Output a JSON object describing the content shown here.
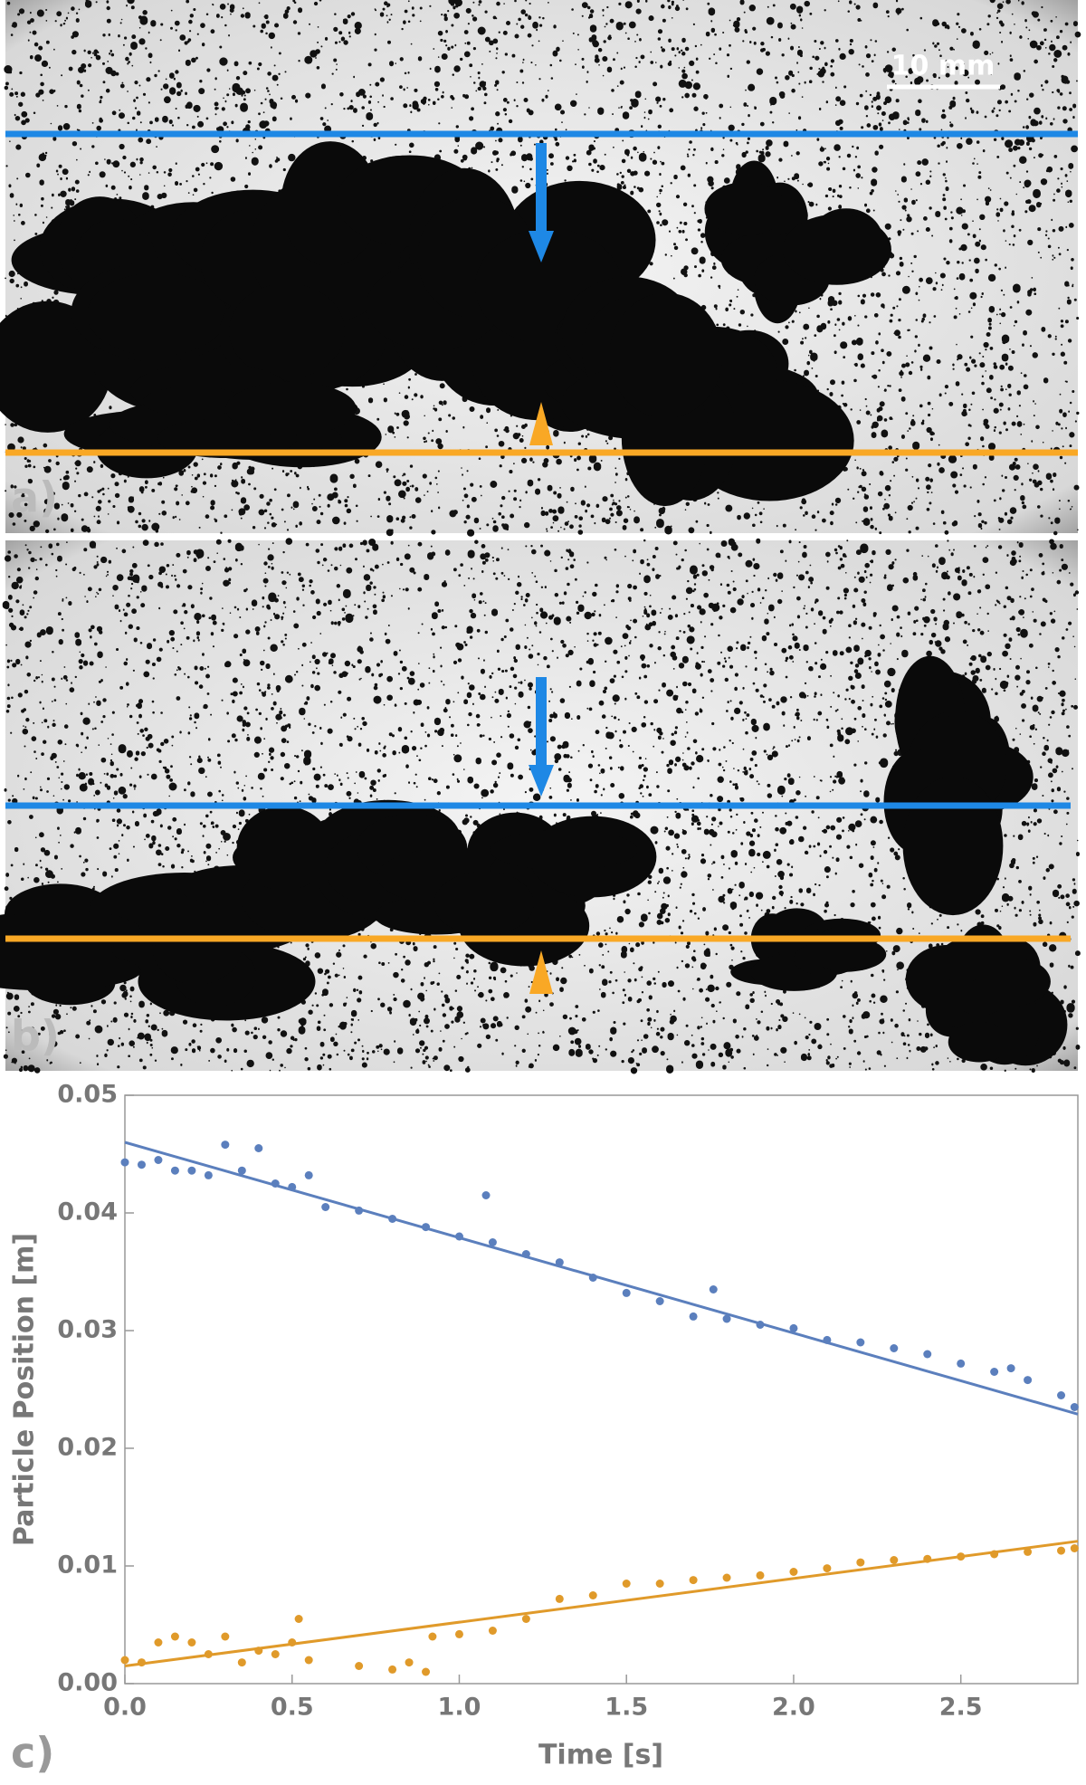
{
  "panels": [
    {
      "label": "a)",
      "scale_bar": "10 mm"
    },
    {
      "label": "b)"
    }
  ],
  "chart_data": {
    "type": "scatter",
    "panel_label": "c)",
    "xlabel": "Time [s]",
    "ylabel": "Particle Position [m]",
    "xlim": [
      0,
      2.85
    ],
    "ylim": [
      0,
      0.05
    ],
    "xticks": [
      {
        "value": 0,
        "label": "0.0"
      },
      0.5,
      {
        "value": 1,
        "label": "1.0"
      },
      1.5,
      {
        "value": 2,
        "label": "2.0"
      },
      2.5
    ],
    "yticks": [
      {
        "value": 0,
        "label": "0.00"
      },
      0.01,
      0.02,
      0.03,
      0.04,
      0.05
    ],
    "series": [
      {
        "color": "#5b7fbd",
        "mode": "markers",
        "x": [
          0,
          0.05,
          0.1,
          0.15,
          0.2,
          0.25,
          0.3,
          0.35,
          0.4,
          0.45,
          0.5,
          0.55,
          0.6,
          0.7,
          0.8,
          0.9,
          1.0,
          1.08,
          1.1,
          1.2,
          1.3,
          1.4,
          1.5,
          1.6,
          1.7,
          1.76,
          1.8,
          1.9,
          2.0,
          2.1,
          2.2,
          2.3,
          2.4,
          2.5,
          2.6,
          2.65,
          2.7,
          2.8,
          2.84
        ],
        "values": [
          0.0443,
          0.0441,
          0.0445,
          0.0436,
          0.0436,
          0.0432,
          0.0458,
          0.0436,
          0.0455,
          0.0425,
          0.0422,
          0.0432,
          0.0405,
          0.0402,
          0.0395,
          0.0388,
          0.038,
          0.0415,
          0.0375,
          0.0365,
          0.0358,
          0.0345,
          0.0332,
          0.0325,
          0.0312,
          0.0335,
          0.031,
          0.0305,
          0.0302,
          0.0292,
          0.029,
          0.0285,
          0.028,
          0.0272,
          0.0265,
          0.0268,
          0.0258,
          0.0245,
          0.0235
        ]
      },
      {
        "color": "#e09a2a",
        "mode": "markers",
        "x": [
          0,
          0.05,
          0.1,
          0.15,
          0.2,
          0.25,
          0.3,
          0.35,
          0.4,
          0.45,
          0.5,
          0.52,
          0.55,
          0.7,
          0.8,
          0.85,
          0.9,
          0.92,
          1.0,
          1.1,
          1.2,
          1.3,
          1.4,
          1.5,
          1.6,
          1.7,
          1.8,
          1.9,
          2.0,
          2.1,
          2.2,
          2.3,
          2.4,
          2.5,
          2.6,
          2.7,
          2.8,
          2.84
        ],
        "values": [
          0.002,
          0.0018,
          0.0035,
          0.004,
          0.0035,
          0.0025,
          0.004,
          0.0018,
          0.0028,
          0.0025,
          0.0035,
          0.0055,
          0.002,
          0.0015,
          0.0012,
          0.0018,
          0.001,
          0.004,
          0.0042,
          0.0045,
          0.0055,
          0.0072,
          0.0075,
          0.0085,
          0.0085,
          0.0088,
          0.009,
          0.0092,
          0.0095,
          0.0098,
          0.0103,
          0.0105,
          0.0106,
          0.0108,
          0.011,
          0.0112,
          0.0113,
          0.0115
        ]
      },
      {
        "color": "#5b7fbd",
        "mode": "line",
        "x": [
          0,
          2.85
        ],
        "values": [
          0.046,
          0.0229
        ]
      },
      {
        "color": "#e09a2a",
        "mode": "line",
        "x": [
          0,
          2.85
        ],
        "values": [
          0.0015,
          0.0121
        ]
      }
    ]
  }
}
